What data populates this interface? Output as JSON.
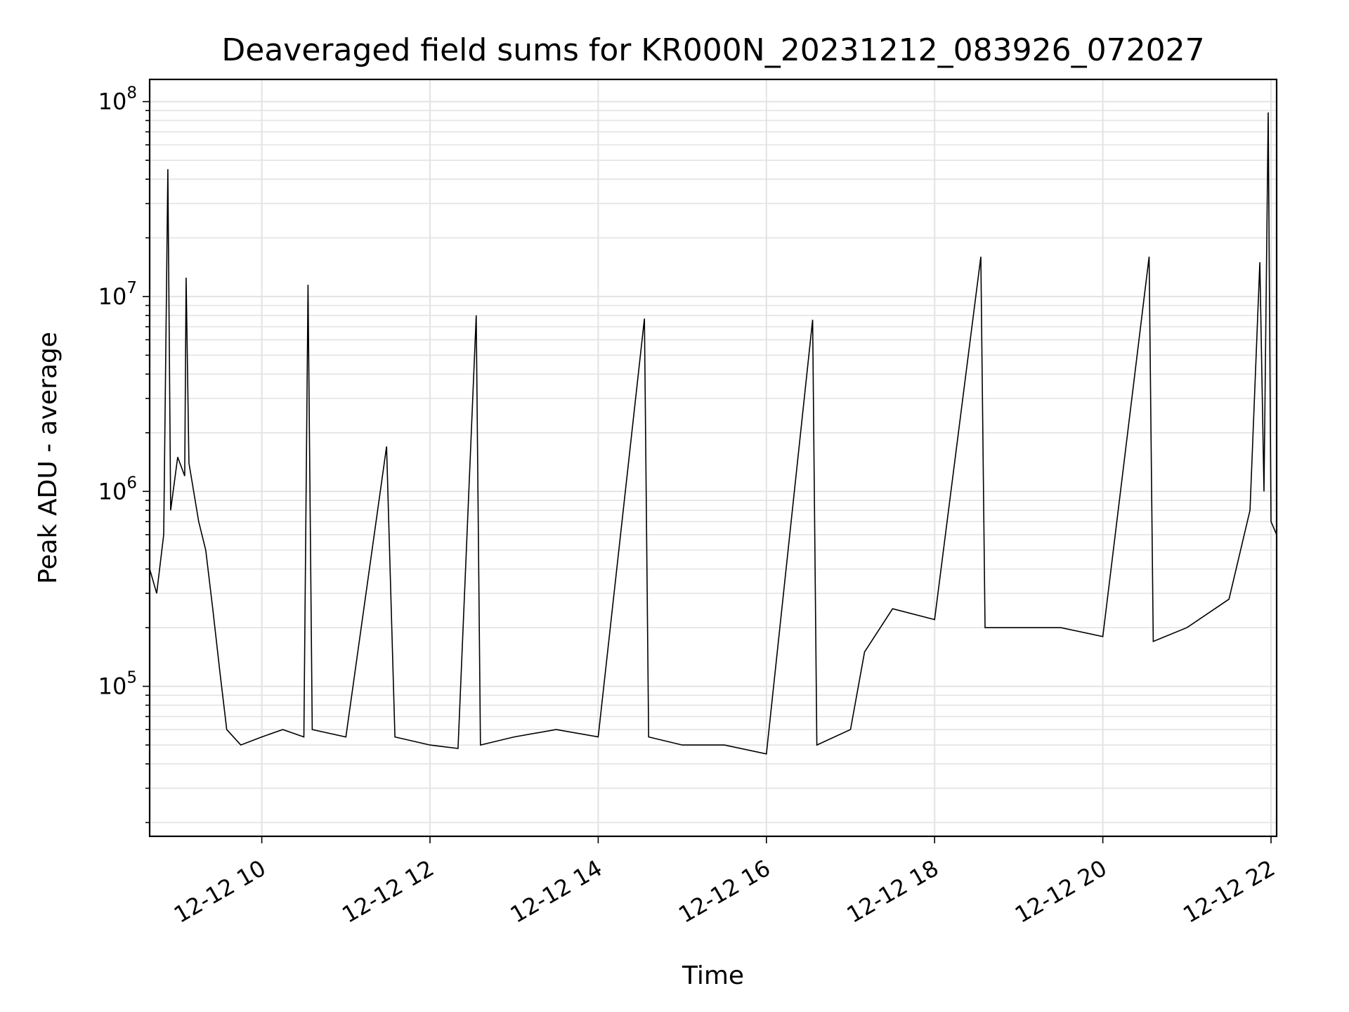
{
  "chart_data": {
    "type": "line",
    "title": "Deaveraged field sums for KR000N_20231212_083926_072027",
    "xlabel": "Time",
    "ylabel": "Peak ADU - average",
    "yscale": "log",
    "grid": true,
    "line_color": "#000000",
    "xlim": [
      "2023-12-12T08:40",
      "2023-12-12T22:04"
    ],
    "ylim": [
      17000,
      130000000
    ],
    "xticks": [
      {
        "t": "2023-12-12T10:00",
        "label": "12-12 10"
      },
      {
        "t": "2023-12-12T12:00",
        "label": "12-12 12"
      },
      {
        "t": "2023-12-12T14:00",
        "label": "12-12 14"
      },
      {
        "t": "2023-12-12T16:00",
        "label": "12-12 16"
      },
      {
        "t": "2023-12-12T18:00",
        "label": "12-12 18"
      },
      {
        "t": "2023-12-12T20:00",
        "label": "12-12 20"
      },
      {
        "t": "2023-12-12T22:00",
        "label": "12-12 22"
      }
    ],
    "yticks": [
      {
        "value": 100000,
        "base": "10",
        "exp": "5"
      },
      {
        "value": 1000000,
        "base": "10",
        "exp": "6"
      },
      {
        "value": 10000000,
        "base": "10",
        "exp": "7"
      },
      {
        "value": 100000000,
        "base": "10",
        "exp": "8"
      }
    ],
    "series": [
      {
        "points": [
          [
            "2023-12-12T08:40",
            400000
          ],
          [
            "2023-12-12T08:45",
            300000
          ],
          [
            "2023-12-12T08:50",
            600000
          ],
          [
            "2023-12-12T08:53",
            45000000
          ],
          [
            "2023-12-12T08:55",
            800000
          ],
          [
            "2023-12-12T09:00",
            1500000
          ],
          [
            "2023-12-12T09:05",
            1200000
          ],
          [
            "2023-12-12T09:06",
            12500000
          ],
          [
            "2023-12-12T09:08",
            1400000
          ],
          [
            "2023-12-12T09:15",
            700000
          ],
          [
            "2023-12-12T09:20",
            500000
          ],
          [
            "2023-12-12T09:25",
            250000
          ],
          [
            "2023-12-12T09:30",
            120000
          ],
          [
            "2023-12-12T09:35",
            60000
          ],
          [
            "2023-12-12T09:45",
            50000
          ],
          [
            "2023-12-12T10:00",
            55000
          ],
          [
            "2023-12-12T10:15",
            60000
          ],
          [
            "2023-12-12T10:30",
            55000
          ],
          [
            "2023-12-12T10:33",
            11500000
          ],
          [
            "2023-12-12T10:36",
            60000
          ],
          [
            "2023-12-12T11:00",
            55000
          ],
          [
            "2023-12-12T11:29",
            1700000
          ],
          [
            "2023-12-12T11:35",
            55000
          ],
          [
            "2023-12-12T12:00",
            50000
          ],
          [
            "2023-12-12T12:20",
            48000
          ],
          [
            "2023-12-12T12:33",
            8000000
          ],
          [
            "2023-12-12T12:36",
            50000
          ],
          [
            "2023-12-12T13:00",
            55000
          ],
          [
            "2023-12-12T13:30",
            60000
          ],
          [
            "2023-12-12T14:00",
            55000
          ],
          [
            "2023-12-12T14:33",
            7700000
          ],
          [
            "2023-12-12T14:36",
            55000
          ],
          [
            "2023-12-12T15:00",
            50000
          ],
          [
            "2023-12-12T15:30",
            50000
          ],
          [
            "2023-12-12T16:00",
            45000
          ],
          [
            "2023-12-12T16:33",
            7600000
          ],
          [
            "2023-12-12T16:36",
            50000
          ],
          [
            "2023-12-12T17:00",
            60000
          ],
          [
            "2023-12-12T17:10",
            150000
          ],
          [
            "2023-12-12T17:30",
            250000
          ],
          [
            "2023-12-12T18:00",
            220000
          ],
          [
            "2023-12-12T18:33",
            16000000
          ],
          [
            "2023-12-12T18:36",
            200000
          ],
          [
            "2023-12-12T19:00",
            200000
          ],
          [
            "2023-12-12T19:30",
            200000
          ],
          [
            "2023-12-12T20:00",
            180000
          ],
          [
            "2023-12-12T20:33",
            16000000
          ],
          [
            "2023-12-12T20:36",
            170000
          ],
          [
            "2023-12-12T21:00",
            200000
          ],
          [
            "2023-12-12T21:30",
            280000
          ],
          [
            "2023-12-12T21:45",
            800000
          ],
          [
            "2023-12-12T21:52",
            15000000
          ],
          [
            "2023-12-12T21:55",
            1000000
          ],
          [
            "2023-12-12T21:58",
            88000000
          ],
          [
            "2023-12-12T22:00",
            700000
          ],
          [
            "2023-12-12T22:04",
            600000
          ]
        ]
      }
    ]
  }
}
